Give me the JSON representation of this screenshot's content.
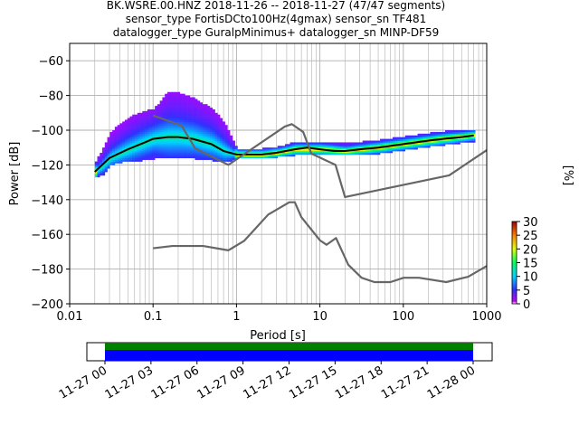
{
  "title": {
    "line1": "BK.WSRE.00.HNZ   2018-11-26 -- 2018-11-27  (47/47 segments)",
    "line2": "sensor_type FortisDCto100Hz(4gmax) sensor_sn TF481",
    "line3": "datalogger_type GuralpMinimus+ datalogger_sn MINP-DF59"
  },
  "colors": {
    "noise_model": "#666666",
    "mean_curve": "#000000",
    "grid": "#b0b0b0",
    "timeline_green": "#008000",
    "timeline_blue": "#0000ff"
  },
  "chart_data": [
    {
      "type": "heatmap",
      "title": "BK.WSRE.00.HNZ   2018-11-26 -- 2018-11-27  (47/47 segments)",
      "xlabel": "Period [s]",
      "ylabel": "Power [dB]",
      "xscale": "log",
      "xlim": [
        0.01,
        1000
      ],
      "ylim": [
        -200,
        -50
      ],
      "grid": true,
      "xticks": [
        0.01,
        0.1,
        1,
        10,
        100,
        1000
      ],
      "xtick_labels": [
        "0.01",
        "0.1",
        "1",
        "10",
        "100",
        "1000"
      ],
      "yticks": [
        -200,
        -180,
        -160,
        -140,
        -120,
        -100,
        -80,
        -60
      ],
      "ytick_labels": [
        "−200",
        "−180",
        "−160",
        "−140",
        "−120",
        "−100",
        "−80",
        "−60"
      ],
      "colorbar": {
        "label": "[%]",
        "range": [
          0,
          30
        ],
        "ticks": [
          0,
          5,
          10,
          15,
          20,
          25,
          30
        ],
        "tick_labels": [
          "0",
          "5",
          "10",
          "15",
          "20",
          "25",
          "30"
        ]
      },
      "series": [
        {
          "kind": "line",
          "x": [
            0.02,
            0.03,
            0.05,
            0.08,
            0.1,
            0.15,
            0.2,
            0.3,
            0.5,
            0.7,
            1,
            1.5,
            2,
            3,
            5,
            7,
            10,
            15,
            20,
            30,
            50,
            100,
            200,
            300,
            500,
            700
          ],
          "y": [
            -124,
            -116,
            -111,
            -107,
            -105,
            -104,
            -104,
            -105,
            -108,
            -112,
            -114,
            -114,
            -114,
            -113,
            -111,
            -110,
            -111,
            -112,
            -112,
            -111,
            -110,
            -108,
            -106,
            -105,
            -104,
            -103
          ]
        },
        {
          "kind": "line",
          "x": [
            0.1,
            0.17,
            0.4,
            0.8,
            1.24,
            2.4,
            4.3,
            5,
            6,
            10,
            12,
            15.6,
            21.9,
            31.6,
            45,
            70,
            101,
            154,
            328,
            600,
            1000
          ],
          "y": [
            -168,
            -166.7,
            -166.7,
            -169.2,
            -163.7,
            -148.6,
            -141.5,
            -141.5,
            -150.1,
            -163.4,
            -166,
            -162.1,
            -177.5,
            -185,
            -187.5,
            -187.5,
            -185,
            -185,
            -187.5,
            -184.4,
            -178.2
          ]
        },
        {
          "kind": "line",
          "x": [
            0.1,
            0.22,
            0.32,
            0.8,
            3.8,
            4.6,
            6.3,
            7.9,
            15.4,
            20,
            354.8,
            1000
          ],
          "y": [
            -91.5,
            -97.4,
            -110.5,
            -120,
            -97.9,
            -96.5,
            -101,
            -113.5,
            -120,
            -138.5,
            -126,
            -111.5
          ]
        }
      ],
      "density": [
        {
          "x": 0.02,
          "low": -127,
          "high": -118,
          "peak": -124
        },
        {
          "x": 0.025,
          "low": -125,
          "high": -110,
          "peak": -120
        },
        {
          "x": 0.03,
          "low": -120,
          "high": -102,
          "peak": -116
        },
        {
          "x": 0.04,
          "low": -118,
          "high": -96,
          "peak": -113
        },
        {
          "x": 0.05,
          "low": -118,
          "high": -93,
          "peak": -111
        },
        {
          "x": 0.07,
          "low": -117,
          "high": -90,
          "peak": -108
        },
        {
          "x": 0.1,
          "low": -116,
          "high": -88,
          "peak": -105
        },
        {
          "x": 0.15,
          "low": -116,
          "high": -78,
          "peak": -104
        },
        {
          "x": 0.2,
          "low": -116,
          "high": -79,
          "peak": -104
        },
        {
          "x": 0.3,
          "low": -116,
          "high": -82,
          "peak": -105
        },
        {
          "x": 0.5,
          "low": -117,
          "high": -88,
          "peak": -108
        },
        {
          "x": 0.7,
          "low": -118,
          "high": -96,
          "peak": -112
        },
        {
          "x": 1,
          "low": -116,
          "high": -111,
          "peak": -114
        },
        {
          "x": 2,
          "low": -116,
          "high": -111,
          "peak": -114
        },
        {
          "x": 3,
          "low": -115,
          "high": -110,
          "peak": -113
        },
        {
          "x": 5,
          "low": -114,
          "high": -107,
          "peak": -111
        },
        {
          "x": 10,
          "low": -114,
          "high": -107,
          "peak": -111
        },
        {
          "x": 20,
          "low": -114,
          "high": -108,
          "peak": -112
        },
        {
          "x": 50,
          "low": -113,
          "high": -106,
          "peak": -110
        },
        {
          "x": 100,
          "low": -111,
          "high": -104,
          "peak": -108
        },
        {
          "x": 300,
          "low": -108,
          "high": -101,
          "peak": -105
        },
        {
          "x": 700,
          "low": -106,
          "high": -100,
          "peak": -103
        }
      ]
    },
    {
      "type": "bar",
      "kind": "timeline",
      "start": "2018-11-27 00:00",
      "end": "2018-11-28 00:00",
      "xtick_labels": [
        "11-27 00",
        "11-27 03",
        "11-27 06",
        "11-27 09",
        "11-27 12",
        "11-27 15",
        "11-27 18",
        "11-27 21",
        "11-28 00"
      ],
      "coverage": [
        {
          "color": "green",
          "start": "2018-11-27 00:00",
          "end": "2018-11-28 00:00"
        },
        {
          "color": "blue",
          "start": "2018-11-27 00:00",
          "end": "2018-11-28 00:00"
        }
      ]
    }
  ]
}
